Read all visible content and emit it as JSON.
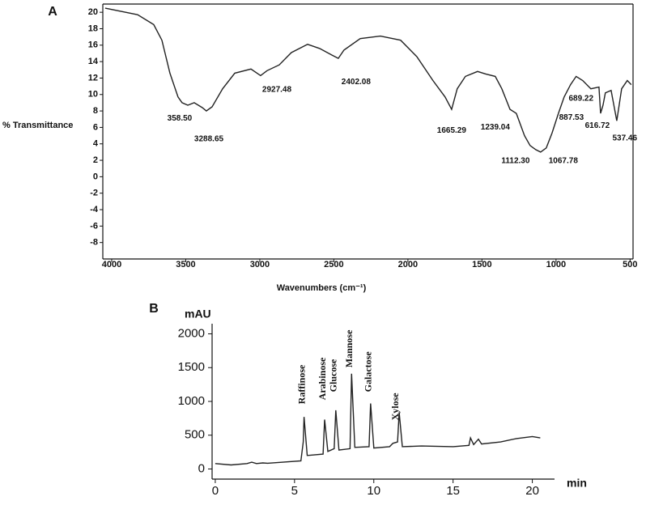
{
  "chart_data": [
    {
      "type": "line",
      "panel_label": "A",
      "ylabel": "% Transmittance",
      "xlabel": "Wavenumbers (cm⁻¹)",
      "color": "#222222",
      "x": [
        4044,
        3825,
        3716,
        3661,
        3607,
        3552,
        3525,
        3486,
        3443,
        3388,
        3361,
        3322,
        3251,
        3169,
        3060,
        2995,
        2951,
        2869,
        2787,
        2678,
        2596,
        2514,
        2470,
        2432,
        2322,
        2186,
        2049,
        1940,
        1831,
        1749,
        1705,
        1667,
        1612,
        1530,
        1475,
        1410,
        1366,
        1311,
        1268,
        1246,
        1213,
        1175,
        1137,
        1104,
        1066,
        1027,
        984,
        945,
        902,
        864,
        820,
        765,
        710,
        699,
        683,
        667,
        628,
        590,
        557,
        519,
        492
      ],
      "values": [
        20.5,
        19.7,
        18.5,
        16.6,
        12.6,
        9.7,
        9.0,
        8.7,
        9.0,
        8.4,
        8.0,
        8.5,
        10.7,
        12.6,
        13.1,
        12.3,
        12.9,
        13.6,
        15.1,
        16.1,
        15.6,
        14.8,
        14.4,
        15.4,
        16.8,
        17.1,
        16.6,
        14.6,
        11.7,
        9.7,
        8.2,
        10.7,
        12.2,
        12.8,
        12.5,
        12.2,
        10.7,
        8.2,
        7.7,
        6.6,
        5.0,
        3.8,
        3.3,
        3.0,
        3.5,
        5.3,
        7.7,
        9.7,
        11.2,
        12.2,
        11.7,
        10.7,
        10.9,
        7.7,
        8.7,
        10.2,
        10.5,
        6.8,
        10.7,
        11.7,
        11.2
      ],
      "xlim": [
        4060,
        480
      ],
      "ylim": [
        -10,
        21
      ],
      "xticks": [
        4000,
        3500,
        3000,
        2500,
        2000,
        1500,
        1000,
        500
      ],
      "yticks": [
        -8,
        -6,
        -4,
        -2,
        0,
        2,
        4,
        6,
        8,
        10,
        12,
        14,
        16,
        18,
        20
      ],
      "annotations": [
        {
          "text": "358.50",
          "x": 3541,
          "y": 7.1
        },
        {
          "text": "3288.65",
          "x": 3344,
          "y": 4.6
        },
        {
          "text": "2927.48",
          "x": 2885,
          "y": 10.6
        },
        {
          "text": "2402.08",
          "x": 2350,
          "y": 11.5
        },
        {
          "text": "1665.29",
          "x": 1705,
          "y": 5.6
        },
        {
          "text": "1239.04",
          "x": 1410,
          "y": 6.0
        },
        {
          "text": "1112.30",
          "x": 1273,
          "y": 1.9
        },
        {
          "text": "1067.78",
          "x": 951,
          "y": 1.9
        },
        {
          "text": "887.53",
          "x": 896,
          "y": 7.2
        },
        {
          "text": "689.22",
          "x": 831,
          "y": 9.5
        },
        {
          "text": "616.72",
          "x": 721,
          "y": 6.2
        },
        {
          "text": "537.46",
          "x": 536,
          "y": 4.7
        }
      ]
    },
    {
      "type": "line",
      "panel_label": "B",
      "ylabel": "mAU",
      "xlabel": "min",
      "color": "#222222",
      "x": [
        0,
        1,
        2,
        2.3,
        2.6,
        3,
        3.3,
        5.4,
        5.55,
        5.6,
        5.8,
        6.8,
        6.9,
        7.1,
        7.5,
        7.6,
        7.8,
        8.5,
        8.6,
        8.8,
        9.7,
        9.8,
        10,
        11,
        11.2,
        11.5,
        11.6,
        11.8,
        13,
        15,
        16,
        16.1,
        16.3,
        16.6,
        16.8,
        18,
        19,
        20,
        20.5
      ],
      "values": [
        80,
        60,
        80,
        100,
        80,
        90,
        85,
        120,
        400,
        770,
        200,
        220,
        730,
        260,
        300,
        870,
        280,
        300,
        1410,
        320,
        330,
        970,
        310,
        330,
        380,
        400,
        840,
        330,
        340,
        330,
        350,
        460,
        360,
        440,
        370,
        400,
        450,
        480,
        460
      ],
      "xlim": [
        -0.2,
        21.4
      ],
      "ylim": [
        -150,
        2150
      ],
      "xticks": [
        0,
        5,
        10,
        15,
        20
      ],
      "yticks": [
        0,
        500,
        1000,
        1500,
        2000
      ],
      "annotations": [
        {
          "text": "Raffinose",
          "x": 5.5,
          "y": 960
        },
        {
          "text": "Arabinose",
          "x": 6.8,
          "y": 1020
        },
        {
          "text": "Glucose",
          "x": 7.5,
          "y": 1140
        },
        {
          "text": "Mannose",
          "x": 8.5,
          "y": 1500
        },
        {
          "text": "Galactose",
          "x": 9.7,
          "y": 1140
        },
        {
          "text": "Xylose",
          "x": 11.4,
          "y": 720
        }
      ]
    }
  ]
}
